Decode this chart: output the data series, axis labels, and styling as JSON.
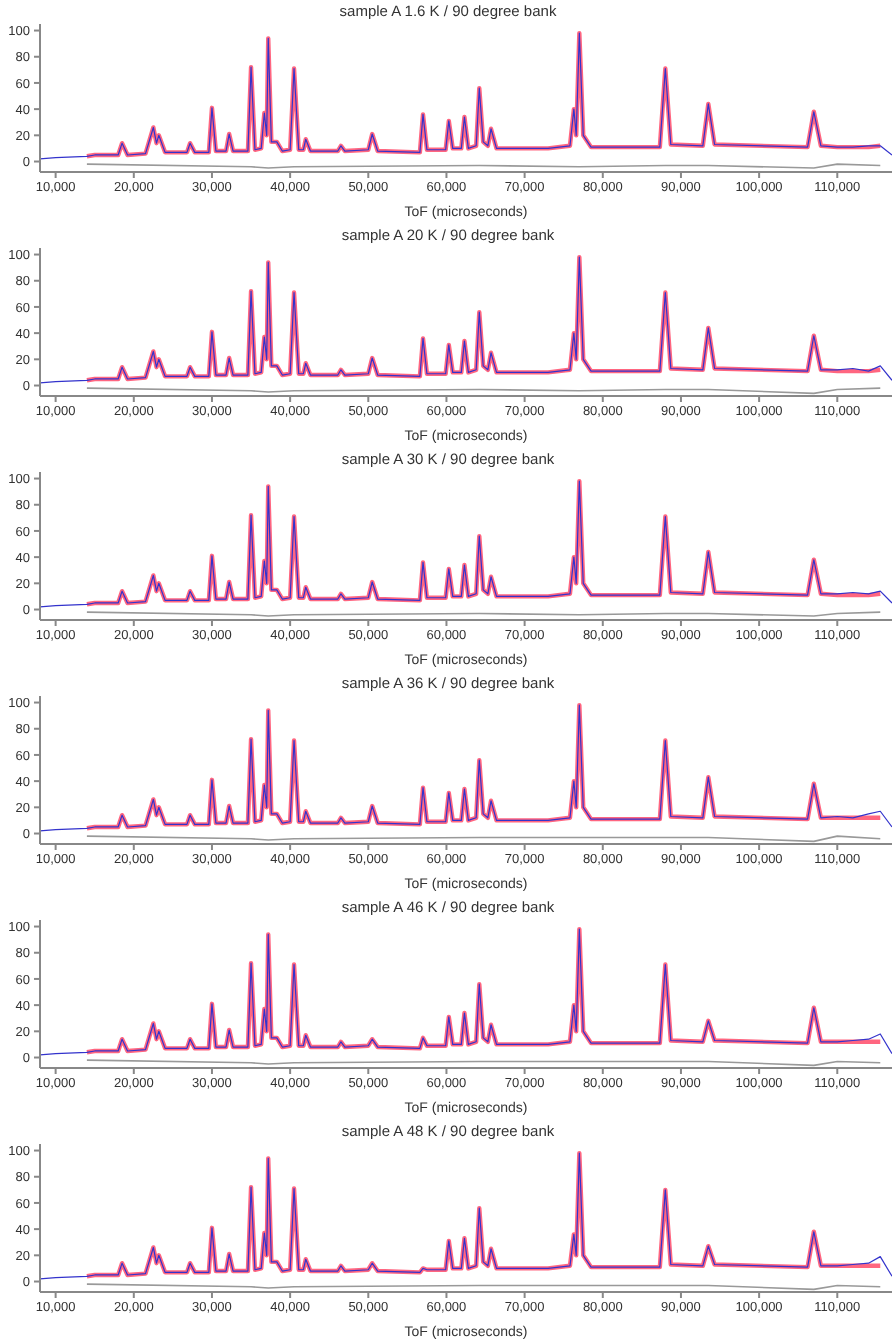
{
  "chart_data": [
    {
      "type": "line",
      "title": "sample A 1.6 K / 90 degree bank",
      "xlabel": "ToF (microseconds)",
      "xlim": [
        8000,
        117000
      ],
      "ylim": [
        -8,
        105
      ],
      "yticks": [
        0,
        20,
        40,
        60,
        80,
        100
      ],
      "xticks": [
        {
          "value": 10000,
          "label": "10,000"
        },
        {
          "value": 20000,
          "label": "20,000"
        },
        {
          "value": 30000,
          "label": "30,000"
        },
        {
          "value": 40000,
          "label": "40,000"
        },
        {
          "value": 50000,
          "label": "50,000"
        },
        {
          "value": 60000,
          "label": "60,000"
        },
        {
          "value": 70000,
          "label": "70,000"
        },
        {
          "value": 80000,
          "label": "80,000"
        },
        {
          "value": 90000,
          "label": "90,000"
        },
        {
          "value": 100000,
          "label": "100,000"
        },
        {
          "value": 110000,
          "label": "110,000"
        }
      ],
      "x": [
        8000,
        10000,
        14000,
        15000,
        18000,
        18500,
        19200,
        21500,
        22500,
        22900,
        23200,
        24000,
        26800,
        27200,
        27800,
        29600,
        30000,
        30500,
        31800,
        32200,
        32700,
        34600,
        35000,
        35500,
        36300,
        36700,
        37000,
        37200,
        37600,
        38300,
        39000,
        40000,
        40500,
        41100,
        41700,
        42000,
        42600,
        46100,
        46500,
        47000,
        50000,
        50500,
        51200,
        56600,
        57000,
        57500,
        59900,
        60300,
        60800,
        61900,
        62300,
        62800,
        63800,
        64200,
        64700,
        65300,
        65700,
        66400,
        73000,
        75800,
        76300,
        76600,
        77000,
        77500,
        78500,
        87300,
        88000,
        88700,
        92800,
        93500,
        94300,
        106200,
        107000,
        107900,
        110000,
        112000,
        114000,
        115500,
        117000
      ],
      "series": [
        {
          "color": "#3333cc",
          "values": [
            2,
            3,
            4,
            5,
            5,
            14,
            5,
            6,
            26,
            14,
            20,
            7,
            7,
            14,
            7,
            7,
            41,
            8,
            8,
            21,
            8,
            8,
            72,
            9,
            10,
            37,
            20,
            94,
            15,
            15,
            8,
            9,
            71,
            9,
            9,
            17,
            8,
            8,
            12,
            8,
            9,
            21,
            8,
            7,
            36,
            9,
            9,
            31,
            10,
            10,
            34,
            10,
            12,
            56,
            15,
            12,
            25,
            10,
            10,
            12,
            40,
            20,
            98,
            20,
            11,
            11,
            71,
            13,
            12,
            44,
            13,
            11,
            38,
            12,
            11,
            11,
            12,
            12,
            5
          ]
        },
        {
          "color": "#ff6680",
          "values": [
            null,
            null,
            4,
            5,
            5,
            14,
            5,
            6,
            26,
            14,
            20,
            7,
            7,
            14,
            7,
            7,
            41,
            8,
            8,
            21,
            8,
            8,
            72,
            9,
            10,
            37,
            20,
            94,
            15,
            15,
            8,
            9,
            71,
            9,
            9,
            17,
            8,
            8,
            12,
            8,
            9,
            21,
            8,
            7,
            36,
            9,
            9,
            31,
            10,
            10,
            34,
            10,
            12,
            56,
            15,
            12,
            25,
            10,
            10,
            12,
            40,
            20,
            98,
            20,
            11,
            11,
            71,
            13,
            12,
            44,
            13,
            11,
            38,
            12,
            11,
            11,
            11,
            12,
            null
          ]
        },
        {
          "color": "#999999",
          "x": [
            14000,
            35000,
            37200,
            40500,
            64200,
            77000,
            88000,
            93500,
            107000,
            110000,
            115500
          ],
          "values": [
            -2,
            -4,
            -5,
            -4,
            -3,
            -4,
            -3,
            -3,
            -5,
            -2,
            -3
          ]
        }
      ]
    },
    {
      "type": "line",
      "title": "sample A 20 K / 90 degree bank",
      "xlabel": "ToF (microseconds)",
      "xlim": [
        8000,
        117000
      ],
      "ylim": [
        -8,
        105
      ],
      "yticks": [
        0,
        20,
        40,
        60,
        80,
        100
      ],
      "xticks": [
        {
          "value": 10000,
          "label": "10,000"
        },
        {
          "value": 20000,
          "label": "20,000"
        },
        {
          "value": 30000,
          "label": "30,000"
        },
        {
          "value": 40000,
          "label": "40,000"
        },
        {
          "value": 50000,
          "label": "50,000"
        },
        {
          "value": 60000,
          "label": "60,000"
        },
        {
          "value": 70000,
          "label": "70,000"
        },
        {
          "value": 80000,
          "label": "80,000"
        },
        {
          "value": 90000,
          "label": "90,000"
        },
        {
          "value": 100000,
          "label": "100,000"
        },
        {
          "value": 110000,
          "label": "110,000"
        }
      ],
      "x": [
        8000,
        10000,
        14000,
        15000,
        18000,
        18500,
        19200,
        21500,
        22500,
        22900,
        23200,
        24000,
        26800,
        27200,
        27800,
        29600,
        30000,
        30500,
        31800,
        32200,
        32700,
        34600,
        35000,
        35500,
        36300,
        36700,
        37000,
        37200,
        37600,
        38300,
        39000,
        40000,
        40500,
        41100,
        41700,
        42000,
        42600,
        46100,
        46500,
        47000,
        50000,
        50500,
        51200,
        56600,
        57000,
        57500,
        59900,
        60300,
        60800,
        61900,
        62300,
        62800,
        63800,
        64200,
        64700,
        65300,
        65700,
        66400,
        73000,
        75800,
        76300,
        76600,
        77000,
        77500,
        78500,
        87300,
        88000,
        88700,
        92800,
        93500,
        94300,
        106200,
        107000,
        107900,
        110000,
        112000,
        114000,
        115500,
        117000
      ],
      "series": [
        {
          "color": "#3333cc",
          "values": [
            2,
            3,
            4,
            5,
            5,
            14,
            5,
            6,
            26,
            14,
            20,
            7,
            7,
            14,
            7,
            7,
            41,
            8,
            8,
            21,
            8,
            8,
            72,
            9,
            10,
            37,
            20,
            94,
            15,
            15,
            8,
            9,
            71,
            9,
            9,
            17,
            8,
            8,
            12,
            8,
            9,
            21,
            8,
            7,
            36,
            9,
            9,
            31,
            10,
            10,
            34,
            10,
            12,
            56,
            15,
            12,
            25,
            10,
            10,
            12,
            40,
            20,
            98,
            20,
            11,
            11,
            71,
            13,
            12,
            44,
            13,
            11,
            38,
            12,
            12,
            13,
            11,
            15,
            4
          ]
        },
        {
          "color": "#ff6680",
          "values": [
            null,
            null,
            4,
            5,
            5,
            14,
            5,
            6,
            26,
            14,
            20,
            7,
            7,
            14,
            7,
            7,
            41,
            8,
            8,
            21,
            8,
            8,
            72,
            9,
            10,
            37,
            20,
            94,
            15,
            15,
            8,
            9,
            71,
            9,
            9,
            17,
            8,
            8,
            12,
            8,
            9,
            21,
            8,
            7,
            36,
            9,
            9,
            31,
            10,
            10,
            34,
            10,
            12,
            56,
            15,
            12,
            25,
            10,
            10,
            12,
            40,
            20,
            98,
            20,
            11,
            11,
            71,
            13,
            12,
            44,
            13,
            11,
            38,
            12,
            11,
            11,
            11,
            12,
            null
          ]
        },
        {
          "color": "#999999",
          "x": [
            14000,
            35000,
            37200,
            40500,
            64200,
            77000,
            88000,
            93500,
            107000,
            110000,
            115500
          ],
          "values": [
            -2,
            -4,
            -5,
            -4,
            -3,
            -4,
            -3,
            -3,
            -6,
            -3,
            -2
          ]
        }
      ]
    },
    {
      "type": "line",
      "title": "sample A 30 K / 90 degree bank",
      "xlabel": "ToF (microseconds)",
      "xlim": [
        8000,
        117000
      ],
      "ylim": [
        -8,
        105
      ],
      "yticks": [
        0,
        20,
        40,
        60,
        80,
        100
      ],
      "xticks": [
        {
          "value": 10000,
          "label": "10,000"
        },
        {
          "value": 20000,
          "label": "20,000"
        },
        {
          "value": 30000,
          "label": "30,000"
        },
        {
          "value": 40000,
          "label": "40,000"
        },
        {
          "value": 50000,
          "label": "50,000"
        },
        {
          "value": 60000,
          "label": "60,000"
        },
        {
          "value": 70000,
          "label": "70,000"
        },
        {
          "value": 80000,
          "label": "80,000"
        },
        {
          "value": 90000,
          "label": "90,000"
        },
        {
          "value": 100000,
          "label": "100,000"
        },
        {
          "value": 110000,
          "label": "110,000"
        }
      ],
      "x": [
        8000,
        10000,
        14000,
        15000,
        18000,
        18500,
        19200,
        21500,
        22500,
        22900,
        23200,
        24000,
        26800,
        27200,
        27800,
        29600,
        30000,
        30500,
        31800,
        32200,
        32700,
        34600,
        35000,
        35500,
        36300,
        36700,
        37000,
        37200,
        37600,
        38300,
        39000,
        40000,
        40500,
        41100,
        41700,
        42000,
        42600,
        46100,
        46500,
        47000,
        50000,
        50500,
        51200,
        56600,
        57000,
        57500,
        59900,
        60300,
        60800,
        61900,
        62300,
        62800,
        63800,
        64200,
        64700,
        65300,
        65700,
        66400,
        73000,
        75800,
        76300,
        76600,
        77000,
        77500,
        78500,
        87300,
        88000,
        88700,
        92800,
        93500,
        94300,
        106200,
        107000,
        107900,
        110000,
        112000,
        114000,
        115500,
        117000
      ],
      "series": [
        {
          "color": "#3333cc",
          "values": [
            2,
            3,
            4,
            5,
            5,
            14,
            5,
            6,
            26,
            14,
            20,
            7,
            7,
            14,
            7,
            7,
            41,
            8,
            8,
            21,
            8,
            8,
            72,
            9,
            10,
            37,
            20,
            94,
            15,
            15,
            8,
            9,
            71,
            9,
            9,
            17,
            8,
            8,
            12,
            8,
            9,
            21,
            8,
            7,
            36,
            9,
            9,
            31,
            10,
            10,
            34,
            10,
            12,
            56,
            15,
            12,
            25,
            10,
            10,
            12,
            40,
            20,
            98,
            20,
            11,
            11,
            71,
            13,
            12,
            44,
            13,
            11,
            38,
            12,
            12,
            13,
            12,
            14,
            5
          ]
        },
        {
          "color": "#ff6680",
          "values": [
            null,
            null,
            4,
            5,
            5,
            14,
            5,
            6,
            26,
            14,
            20,
            7,
            7,
            14,
            7,
            7,
            41,
            8,
            8,
            21,
            8,
            8,
            72,
            9,
            10,
            37,
            20,
            94,
            15,
            15,
            8,
            9,
            71,
            9,
            9,
            17,
            8,
            8,
            12,
            8,
            9,
            21,
            8,
            7,
            36,
            9,
            9,
            31,
            10,
            10,
            34,
            10,
            12,
            56,
            15,
            12,
            25,
            10,
            10,
            12,
            40,
            20,
            98,
            20,
            11,
            11,
            71,
            13,
            12,
            44,
            13,
            11,
            38,
            12,
            11,
            11,
            11,
            12,
            null
          ]
        },
        {
          "color": "#999999",
          "x": [
            14000,
            35000,
            37200,
            40500,
            64200,
            77000,
            88000,
            93500,
            107000,
            110000,
            115500
          ],
          "values": [
            -2,
            -4,
            -5,
            -4,
            -3,
            -4,
            -3,
            -3,
            -5,
            -3,
            -2
          ]
        }
      ]
    },
    {
      "type": "line",
      "title": "sample A 36 K / 90 degree bank",
      "xlabel": "ToF (microseconds)",
      "xlim": [
        8000,
        117000
      ],
      "ylim": [
        -8,
        105
      ],
      "yticks": [
        0,
        20,
        40,
        60,
        80,
        100
      ],
      "xticks": [
        {
          "value": 10000,
          "label": "10,000"
        },
        {
          "value": 20000,
          "label": "20,000"
        },
        {
          "value": 30000,
          "label": "30,000"
        },
        {
          "value": 40000,
          "label": "40,000"
        },
        {
          "value": 50000,
          "label": "50,000"
        },
        {
          "value": 60000,
          "label": "60,000"
        },
        {
          "value": 70000,
          "label": "70,000"
        },
        {
          "value": 80000,
          "label": "80,000"
        },
        {
          "value": 90000,
          "label": "90,000"
        },
        {
          "value": 100000,
          "label": "100,000"
        },
        {
          "value": 110000,
          "label": "110,000"
        }
      ],
      "x": [
        8000,
        10000,
        14000,
        15000,
        18000,
        18500,
        19200,
        21500,
        22500,
        22900,
        23200,
        24000,
        26800,
        27200,
        27800,
        29600,
        30000,
        30500,
        31800,
        32200,
        32700,
        34600,
        35000,
        35500,
        36300,
        36700,
        37000,
        37200,
        37600,
        38300,
        39000,
        40000,
        40500,
        41100,
        41700,
        42000,
        42600,
        46100,
        46500,
        47000,
        50000,
        50500,
        51200,
        56600,
        57000,
        57500,
        59900,
        60300,
        60800,
        61900,
        62300,
        62800,
        63800,
        64200,
        64700,
        65300,
        65700,
        66400,
        73000,
        75800,
        76300,
        76600,
        77000,
        77500,
        78500,
        87300,
        88000,
        88700,
        92800,
        93500,
        94300,
        106200,
        107000,
        107900,
        110000,
        112000,
        114000,
        115500,
        117000
      ],
      "series": [
        {
          "color": "#3333cc",
          "values": [
            2,
            3,
            4,
            5,
            5,
            14,
            5,
            6,
            26,
            14,
            20,
            7,
            7,
            14,
            7,
            7,
            41,
            8,
            8,
            21,
            8,
            8,
            72,
            9,
            10,
            37,
            20,
            94,
            15,
            15,
            8,
            9,
            71,
            9,
            9,
            17,
            8,
            8,
            12,
            8,
            9,
            21,
            8,
            7,
            35,
            9,
            9,
            31,
            10,
            10,
            34,
            10,
            12,
            56,
            15,
            12,
            25,
            10,
            10,
            12,
            40,
            20,
            98,
            20,
            11,
            11,
            71,
            13,
            12,
            43,
            13,
            11,
            38,
            12,
            13,
            12,
            15,
            17,
            5
          ]
        },
        {
          "color": "#ff6680",
          "values": [
            null,
            null,
            4,
            5,
            5,
            14,
            5,
            6,
            26,
            14,
            20,
            7,
            7,
            14,
            7,
            7,
            41,
            8,
            8,
            21,
            8,
            8,
            72,
            9,
            10,
            37,
            20,
            94,
            15,
            15,
            8,
            9,
            71,
            9,
            9,
            17,
            8,
            8,
            12,
            8,
            9,
            21,
            8,
            7,
            35,
            9,
            9,
            31,
            10,
            10,
            34,
            10,
            12,
            56,
            15,
            12,
            25,
            10,
            10,
            12,
            40,
            20,
            98,
            20,
            11,
            11,
            71,
            13,
            12,
            43,
            13,
            11,
            38,
            12,
            12,
            12,
            12,
            12,
            null
          ]
        },
        {
          "color": "#999999",
          "x": [
            14000,
            35000,
            37200,
            40500,
            64200,
            77000,
            88000,
            93500,
            107000,
            110000,
            115500
          ],
          "values": [
            -2,
            -4,
            -5,
            -4,
            -3,
            -3,
            -3,
            -3,
            -6,
            -2,
            -4
          ]
        }
      ]
    },
    {
      "type": "line",
      "title": "sample A 46 K / 90 degree bank",
      "xlabel": "ToF (microseconds)",
      "xlim": [
        8000,
        117000
      ],
      "ylim": [
        -8,
        105
      ],
      "yticks": [
        0,
        20,
        40,
        60,
        80,
        100
      ],
      "xticks": [
        {
          "value": 10000,
          "label": "10,000"
        },
        {
          "value": 20000,
          "label": "20,000"
        },
        {
          "value": 30000,
          "label": "30,000"
        },
        {
          "value": 40000,
          "label": "40,000"
        },
        {
          "value": 50000,
          "label": "50,000"
        },
        {
          "value": 60000,
          "label": "60,000"
        },
        {
          "value": 70000,
          "label": "70,000"
        },
        {
          "value": 80000,
          "label": "80,000"
        },
        {
          "value": 90000,
          "label": "90,000"
        },
        {
          "value": 100000,
          "label": "100,000"
        },
        {
          "value": 110000,
          "label": "110,000"
        }
      ],
      "x": [
        8000,
        10000,
        14000,
        15000,
        18000,
        18500,
        19200,
        21500,
        22500,
        22900,
        23200,
        24000,
        26800,
        27200,
        27800,
        29600,
        30000,
        30500,
        31800,
        32200,
        32700,
        34600,
        35000,
        35500,
        36300,
        36700,
        37000,
        37200,
        37600,
        38300,
        39000,
        40000,
        40500,
        41100,
        41700,
        42000,
        42600,
        46100,
        46500,
        47000,
        50000,
        50500,
        51200,
        56600,
        57000,
        57500,
        59900,
        60300,
        60800,
        61900,
        62300,
        62800,
        63800,
        64200,
        64700,
        65300,
        65700,
        66400,
        73000,
        75800,
        76300,
        76600,
        77000,
        77500,
        78500,
        87300,
        88000,
        88700,
        92800,
        93500,
        94300,
        106200,
        107000,
        107900,
        110000,
        112000,
        114000,
        115500,
        117000
      ],
      "series": [
        {
          "color": "#3333cc",
          "values": [
            2,
            3,
            4,
            5,
            5,
            14,
            5,
            6,
            26,
            14,
            20,
            7,
            7,
            14,
            7,
            7,
            41,
            8,
            8,
            21,
            8,
            8,
            72,
            9,
            10,
            37,
            20,
            94,
            15,
            15,
            8,
            9,
            71,
            9,
            9,
            17,
            8,
            8,
            12,
            8,
            9,
            14,
            8,
            7,
            15,
            9,
            9,
            31,
            10,
            10,
            34,
            10,
            12,
            56,
            15,
            12,
            25,
            10,
            10,
            12,
            40,
            20,
            98,
            20,
            11,
            11,
            71,
            13,
            12,
            28,
            13,
            11,
            38,
            12,
            12,
            13,
            14,
            18,
            3
          ]
        },
        {
          "color": "#ff6680",
          "values": [
            null,
            null,
            4,
            5,
            5,
            14,
            5,
            6,
            26,
            14,
            20,
            7,
            7,
            14,
            7,
            7,
            41,
            8,
            8,
            21,
            8,
            8,
            72,
            9,
            10,
            37,
            20,
            94,
            15,
            15,
            8,
            9,
            71,
            9,
            9,
            17,
            8,
            8,
            12,
            8,
            9,
            14,
            8,
            7,
            15,
            9,
            9,
            31,
            10,
            10,
            34,
            10,
            12,
            56,
            15,
            12,
            25,
            10,
            10,
            12,
            40,
            20,
            98,
            20,
            11,
            11,
            71,
            13,
            12,
            28,
            13,
            11,
            38,
            12,
            12,
            12,
            12,
            12,
            null
          ]
        },
        {
          "color": "#999999",
          "x": [
            14000,
            35000,
            37200,
            40500,
            64200,
            77000,
            88000,
            93500,
            107000,
            110000,
            115500
          ],
          "values": [
            -2,
            -4,
            -5,
            -4,
            -3,
            -3,
            -3,
            -3,
            -6,
            -3,
            -4
          ]
        }
      ]
    },
    {
      "type": "line",
      "title": "sample A 48 K / 90 degree bank",
      "xlabel": "ToF (microseconds)",
      "xlim": [
        8000,
        117000
      ],
      "ylim": [
        -8,
        105
      ],
      "yticks": [
        0,
        20,
        40,
        60,
        80,
        100
      ],
      "xticks": [
        {
          "value": 10000,
          "label": "10,000"
        },
        {
          "value": 20000,
          "label": "20,000"
        },
        {
          "value": 30000,
          "label": "30,000"
        },
        {
          "value": 40000,
          "label": "40,000"
        },
        {
          "value": 50000,
          "label": "50,000"
        },
        {
          "value": 60000,
          "label": "60,000"
        },
        {
          "value": 70000,
          "label": "70,000"
        },
        {
          "value": 80000,
          "label": "80,000"
        },
        {
          "value": 90000,
          "label": "90,000"
        },
        {
          "value": 100000,
          "label": "100,000"
        },
        {
          "value": 110000,
          "label": "110,000"
        }
      ],
      "x": [
        8000,
        10000,
        14000,
        15000,
        18000,
        18500,
        19200,
        21500,
        22500,
        22900,
        23200,
        24000,
        26800,
        27200,
        27800,
        29600,
        30000,
        30500,
        31800,
        32200,
        32700,
        34600,
        35000,
        35500,
        36300,
        36700,
        37000,
        37200,
        37600,
        38300,
        39000,
        40000,
        40500,
        41100,
        41700,
        42000,
        42600,
        46100,
        46500,
        47000,
        50000,
        50500,
        51200,
        56600,
        57000,
        57500,
        59900,
        60300,
        60800,
        61900,
        62300,
        62800,
        63800,
        64200,
        64700,
        65300,
        65700,
        66400,
        73000,
        75800,
        76300,
        76600,
        77000,
        77500,
        78500,
        87300,
        88000,
        88700,
        92800,
        93500,
        94300,
        106200,
        107000,
        107900,
        110000,
        112000,
        114000,
        115500,
        117000
      ],
      "series": [
        {
          "color": "#3333cc",
          "values": [
            2,
            3,
            4,
            5,
            5,
            14,
            5,
            6,
            26,
            14,
            20,
            7,
            7,
            14,
            7,
            7,
            41,
            8,
            8,
            21,
            8,
            8,
            72,
            9,
            10,
            37,
            20,
            94,
            15,
            15,
            8,
            9,
            71,
            9,
            9,
            17,
            8,
            8,
            12,
            8,
            9,
            14,
            8,
            7,
            10,
            9,
            9,
            31,
            10,
            10,
            33,
            10,
            12,
            56,
            15,
            12,
            25,
            10,
            10,
            12,
            36,
            20,
            98,
            20,
            11,
            11,
            70,
            13,
            12,
            27,
            13,
            11,
            38,
            12,
            12,
            13,
            14,
            19,
            4
          ]
        },
        {
          "color": "#ff6680",
          "values": [
            null,
            null,
            4,
            5,
            5,
            14,
            5,
            6,
            26,
            14,
            20,
            7,
            7,
            14,
            7,
            7,
            41,
            8,
            8,
            21,
            8,
            8,
            72,
            9,
            10,
            37,
            20,
            94,
            15,
            15,
            8,
            9,
            71,
            9,
            9,
            17,
            8,
            8,
            12,
            8,
            9,
            14,
            8,
            7,
            10,
            9,
            9,
            31,
            10,
            10,
            33,
            10,
            12,
            56,
            15,
            12,
            25,
            10,
            10,
            12,
            36,
            20,
            98,
            20,
            11,
            11,
            70,
            13,
            12,
            27,
            13,
            11,
            38,
            12,
            12,
            12,
            12,
            12,
            null
          ]
        },
        {
          "color": "#999999",
          "x": [
            14000,
            35000,
            37200,
            40500,
            64200,
            77000,
            88000,
            93500,
            107000,
            110000,
            115500
          ],
          "values": [
            -2,
            -4,
            -5,
            -4,
            -3,
            -3,
            -3,
            -3,
            -6,
            -3,
            -4
          ]
        }
      ]
    }
  ]
}
